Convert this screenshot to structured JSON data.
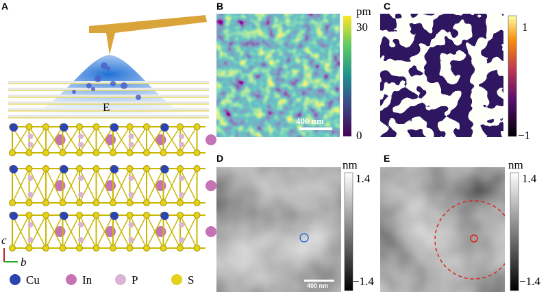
{
  "panels": {
    "a": {
      "label": "A",
      "field_label": "E",
      "axes": {
        "c": "c",
        "b": "b"
      },
      "legend": [
        "Cu",
        "In",
        "P",
        "S"
      ]
    },
    "b": {
      "label": "B",
      "unit": "pm",
      "max": "30",
      "min": "0",
      "scale_bar": "400 nm"
    },
    "c": {
      "label": "C",
      "max": "1",
      "min": "−1"
    },
    "d": {
      "label": "D",
      "unit": "nm",
      "max": "1.4",
      "min": "−1.4",
      "scale_bar": "400 nm"
    },
    "e": {
      "label": "E",
      "unit": "nm",
      "max": "1.4",
      "min": "−1.4"
    }
  }
}
